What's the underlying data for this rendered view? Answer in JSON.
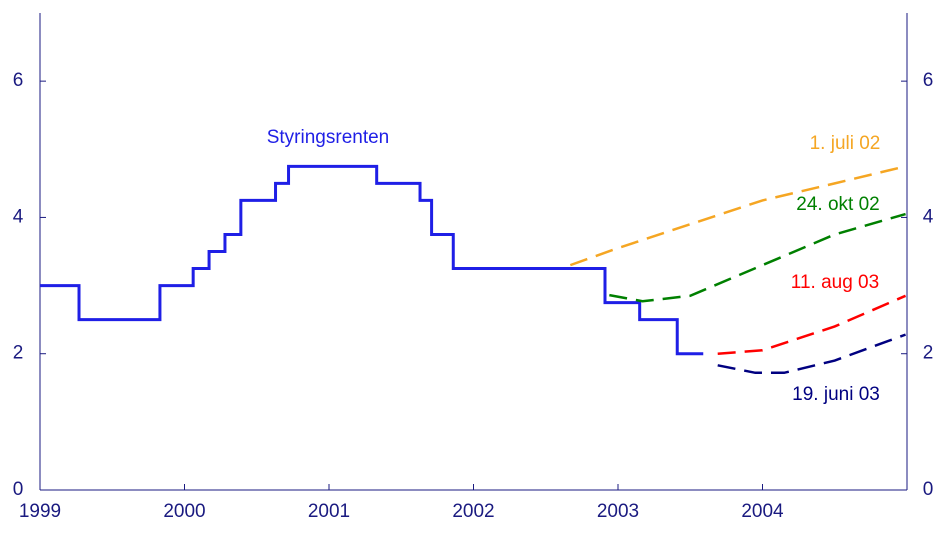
{
  "chart_data": {
    "type": "line",
    "xlim": [
      1999,
      2005
    ],
    "xticks": [
      1999,
      2000,
      2001,
      2002,
      2003,
      2004
    ],
    "ylim": [
      0,
      7
    ],
    "yticks": [
      0,
      2,
      4,
      6
    ],
    "right_axis_ticks": true,
    "series": [
      {
        "name": "Styringsrenten",
        "color": "#1f1fe6",
        "style": "steps-post",
        "x": [
          1999.0,
          1999.27,
          1999.83,
          2000.06,
          2000.17,
          2000.28,
          2000.39,
          2000.63,
          2000.72,
          2001.33,
          2001.63,
          2001.71,
          2001.86,
          2002.91,
          2003.15,
          2003.41,
          2003.59
        ],
        "values": [
          3.0,
          2.5,
          3.0,
          3.25,
          3.5,
          3.75,
          4.25,
          4.5,
          4.75,
          4.5,
          4.25,
          3.75,
          3.25,
          2.75,
          2.5,
          2.0,
          2.0
        ]
      },
      {
        "name": "1. juli 02",
        "color": "#f5a623",
        "style": "dashed",
        "x": [
          2002.67,
          2003.0,
          2003.5,
          2004.0,
          2004.5,
          2004.99
        ],
        "values": [
          3.3,
          3.55,
          3.9,
          4.25,
          4.5,
          4.75
        ]
      },
      {
        "name": "24. okt 02",
        "color": "#008000",
        "style": "dashed",
        "x": [
          2002.94,
          2003.17,
          2003.5,
          2004.0,
          2004.5,
          2004.99
        ],
        "values": [
          2.86,
          2.77,
          2.85,
          3.3,
          3.75,
          4.05
        ]
      },
      {
        "name": "11. aug 03",
        "color": "#ff0000",
        "style": "dashed",
        "x": [
          2003.69,
          2004.0,
          2004.5,
          2004.99
        ],
        "values": [
          2.0,
          2.05,
          2.4,
          2.85
        ]
      },
      {
        "name": "19. juni 03",
        "color": "#000080",
        "style": "dashed",
        "x": [
          2003.69,
          2003.95,
          2004.15,
          2004.5,
          2004.99
        ],
        "values": [
          1.83,
          1.72,
          1.72,
          1.9,
          2.28
        ]
      }
    ]
  }
}
